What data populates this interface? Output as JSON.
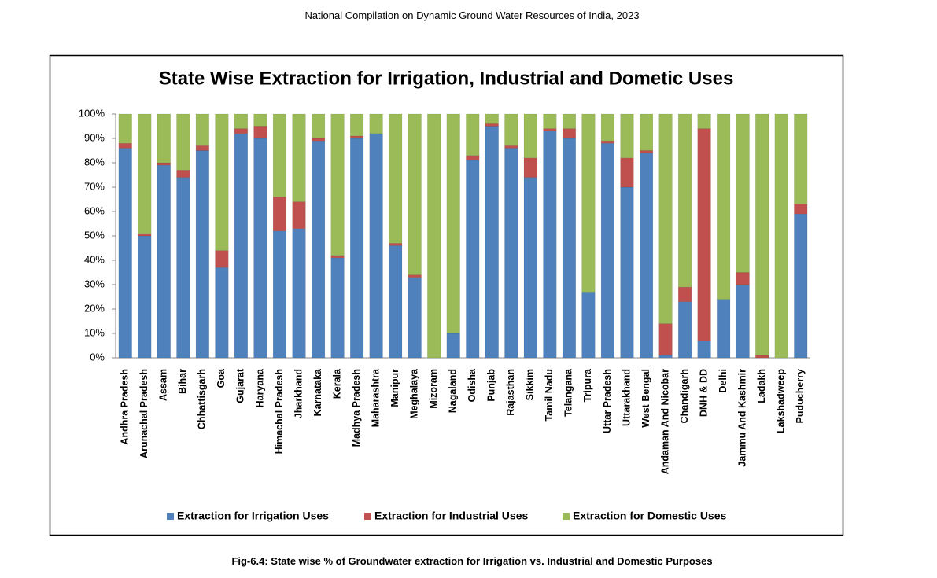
{
  "header": "National Compilation on Dynamic Ground Water Resources of India, 2023",
  "caption": "Fig-6.4: State wise % of Groundwater extraction for Irrigation vs. Industrial and Domestic Purposes",
  "chart_data": {
    "type": "stacked_bar",
    "title": "State Wise Extraction for Irrigation, Industrial and Dometic Uses",
    "categories": [
      "Andhra Pradesh",
      "Arunachal Pradesh",
      "Assam",
      "Bihar",
      "Chhattisgarh",
      "Goa",
      "Gujarat",
      "Haryana",
      "Himachal Pradesh",
      "Jharkhand",
      "Karnataka",
      "Kerala",
      "Madhya Pradesh",
      "Maharashtra",
      "Manipur",
      "Meghalaya",
      "Mizoram",
      "Nagaland",
      "Odisha",
      "Punjab",
      "Rajasthan",
      "Sikkim",
      "Tamil Nadu",
      "Telangana",
      "Tripura",
      "Uttar Pradesh",
      "Uttarakhand",
      "West Bengal",
      "Andaman And Nicobar",
      "Chandigarh",
      "DNH & DD",
      "Delhi",
      "Jammu And Kashmir",
      "Ladakh",
      "Lakshadweep",
      "Puducherry"
    ],
    "series": [
      {
        "name": "Extraction for Irrigation  Uses",
        "color": "#4f81bd",
        "values": [
          86,
          50,
          79,
          74,
          85,
          37,
          92,
          90,
          52,
          53,
          89,
          41,
          90,
          92,
          46,
          33,
          0,
          10,
          81,
          95,
          86,
          74,
          93,
          90,
          27,
          88,
          70,
          84,
          1,
          23,
          7,
          24,
          30,
          0,
          0,
          59
        ]
      },
      {
        "name": "Extraction for  Industrial Uses",
        "color": "#c0504d",
        "values": [
          2,
          1,
          1,
          3,
          2,
          7,
          2,
          5,
          14,
          11,
          1,
          1,
          1,
          0,
          1,
          1,
          0,
          0,
          2,
          1,
          1,
          8,
          1,
          4,
          0,
          1,
          12,
          1,
          13,
          6,
          87,
          0,
          5,
          1,
          0,
          4
        ]
      },
      {
        "name": "Extraction for  Domestic Uses",
        "color": "#9bbb59",
        "values": [
          12,
          49,
          20,
          23,
          13,
          56,
          6,
          5,
          34,
          36,
          10,
          58,
          9,
          8,
          53,
          66,
          100,
          90,
          17,
          4,
          13,
          18,
          6,
          6,
          73,
          11,
          18,
          15,
          86,
          71,
          6,
          76,
          65,
          99,
          100,
          37
        ]
      }
    ],
    "ylim": [
      0,
      100
    ],
    "yticks": [
      {
        "value": 0,
        "label": "0%"
      },
      {
        "value": 10,
        "label": "10%"
      },
      {
        "value": 20,
        "label": "20%"
      },
      {
        "value": 30,
        "label": "30%"
      },
      {
        "value": 40,
        "label": "40%"
      },
      {
        "value": 50,
        "label": "50%"
      },
      {
        "value": 60,
        "label": "60%"
      },
      {
        "value": 70,
        "label": "70%"
      },
      {
        "value": 80,
        "label": "80%"
      },
      {
        "value": 90,
        "label": "90%"
      },
      {
        "value": 100,
        "label": "100%"
      }
    ],
    "legend": "bottom"
  }
}
